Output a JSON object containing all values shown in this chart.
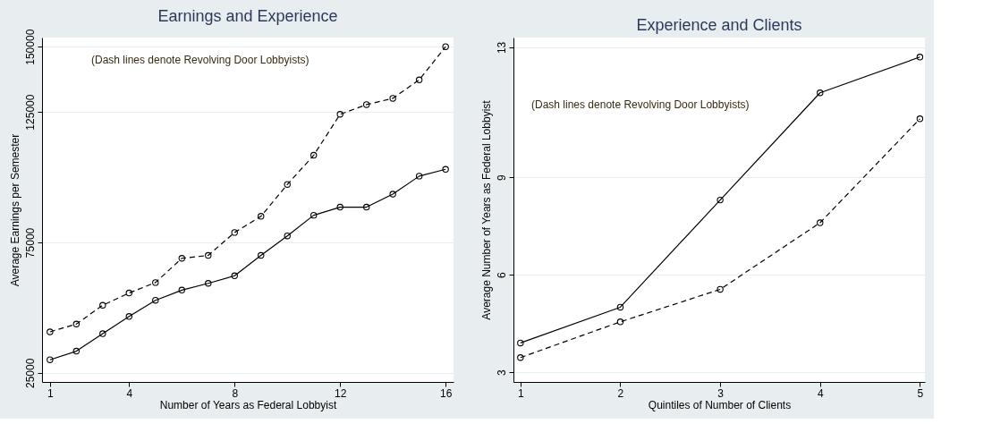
{
  "chart_data": [
    {
      "type": "line",
      "title": "Earnings and Experience",
      "xlabel": "Number of Years as Federal Lobbyist",
      "ylabel": "Average Earnings per Semester",
      "annotations": [
        "(Dash lines denote Revolving Door Lobbyists)"
      ],
      "x": [
        1,
        2,
        3,
        4,
        5,
        6,
        7,
        8,
        9,
        10,
        11,
        12,
        13,
        14,
        15,
        16
      ],
      "series": [
        {
          "color": "#000000",
          "line_style": "solid",
          "values": [
            30000,
            33300,
            40000,
            46600,
            52800,
            56700,
            59300,
            62200,
            70000,
            77500,
            85400,
            88500,
            88500,
            93500,
            100400,
            103000
          ]
        },
        {
          "color": "#000000",
          "line_style": "dashed",
          "values": [
            40700,
            43700,
            50900,
            55600,
            59600,
            68900,
            70000,
            78800,
            85000,
            97200,
            108400,
            124100,
            127800,
            130200,
            137300,
            150000
          ]
        }
      ],
      "xlim": [
        0.7,
        16.3
      ],
      "xticks": [
        1,
        4,
        8,
        12,
        16
      ],
      "ylim": [
        21500,
        153500
      ],
      "yticks": [
        25000,
        75000,
        125000,
        150000
      ],
      "grid": "y",
      "marker": "circle"
    },
    {
      "type": "line",
      "title": "Experience and Clients",
      "xlabel": "Quintiles of Number of Clients",
      "ylabel": "Average Number of Years as Federal Lobbyist",
      "annotations": [
        "(Dash lines denote Revolving Door Lobbyists)"
      ],
      "x": [
        1,
        2,
        3,
        4,
        5
      ],
      "series": [
        {
          "color": "#000000",
          "line_style": "solid",
          "values": [
            3.9,
            5.0,
            8.3,
            11.6,
            12.7
          ]
        },
        {
          "color": "#000000",
          "line_style": "dashed",
          "values": [
            3.45,
            4.55,
            5.55,
            7.6,
            10.8
          ]
        }
      ],
      "xlim": [
        0.93,
        5.05
      ],
      "xticks": [
        1,
        2,
        3,
        4,
        5
      ],
      "ylim": [
        2.7,
        13.3
      ],
      "yticks": [
        3,
        6,
        9,
        13
      ],
      "grid": "y",
      "marker": "circle"
    }
  ]
}
